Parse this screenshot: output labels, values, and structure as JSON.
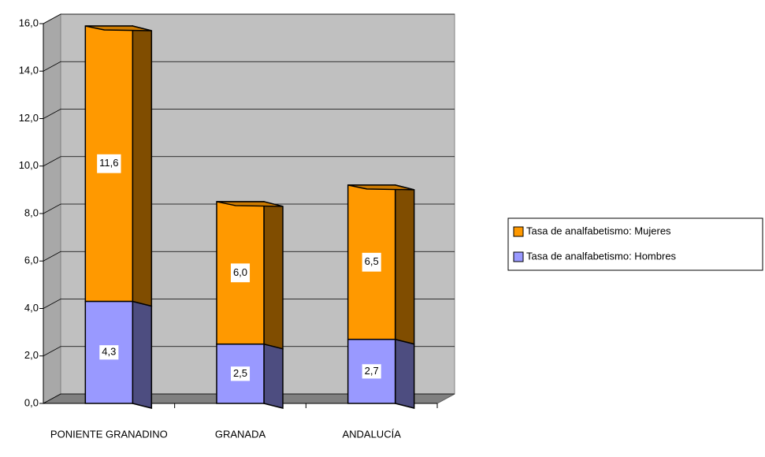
{
  "chart_data": {
    "type": "bar3d_stacked",
    "categories": [
      "PONIENTE GRANADINO",
      "GRANADA",
      "ANDALUCÍA"
    ],
    "series": [
      {
        "name": "Tasa de analfabetismo: Hombres",
        "color": "#9999ff",
        "values": [
          4.3,
          2.5,
          2.7
        ],
        "value_labels": [
          "4,3",
          "2,5",
          "2,7"
        ]
      },
      {
        "name": "Tasa de analfabetismo: Mujeres",
        "color": "#ff9900",
        "values": [
          11.6,
          6.0,
          6.5
        ],
        "value_labels": [
          "11,6",
          "6,0",
          "6,5"
        ]
      }
    ],
    "ylim": [
      0,
      16
    ],
    "yticks": [
      {
        "value": 0,
        "label": "0,0"
      },
      {
        "value": 2,
        "label": "2,0"
      },
      {
        "value": 4,
        "label": "4,0"
      },
      {
        "value": 6,
        "label": "6,0"
      },
      {
        "value": 8,
        "label": "8,0"
      },
      {
        "value": 10,
        "label": "10,0"
      },
      {
        "value": 12,
        "label": "12,0"
      },
      {
        "value": 14,
        "label": "14,0"
      },
      {
        "value": 16,
        "label": "16,0"
      }
    ],
    "grid": true,
    "legend": "right"
  }
}
